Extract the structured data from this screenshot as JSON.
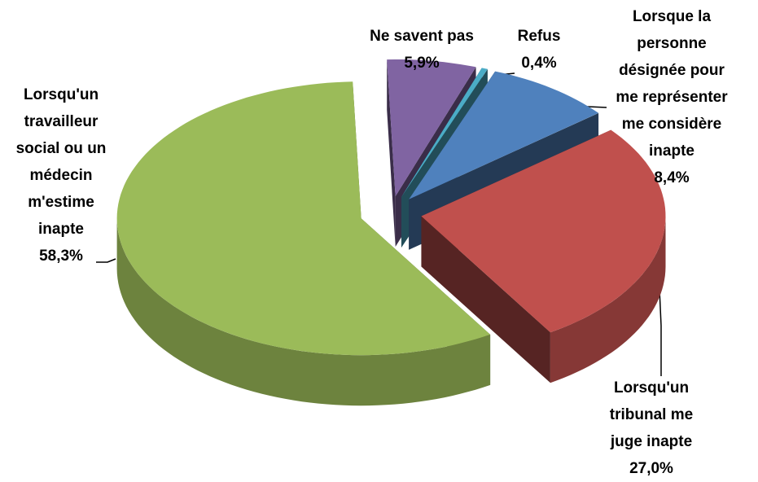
{
  "chart_data": {
    "type": "pie",
    "categories": [
      "Ne savent pas",
      "Refus",
      "Lorsque la personne désignée pour me représenter me considère inapte",
      "Lorsqu'un tribunal me juge inapte",
      "Lorsqu'un travailleur social ou un médecin m'estime inapte"
    ],
    "values": [
      5.9,
      0.4,
      8.4,
      27.0,
      58.3
    ],
    "value_labels": [
      "5,9%",
      "0,4%",
      "8,4%",
      "27,0%",
      "58,3%"
    ],
    "colors": [
      "#8064a2",
      "#4bacc6",
      "#4f81bd",
      "#c0504d",
      "#9bbb59"
    ]
  }
}
